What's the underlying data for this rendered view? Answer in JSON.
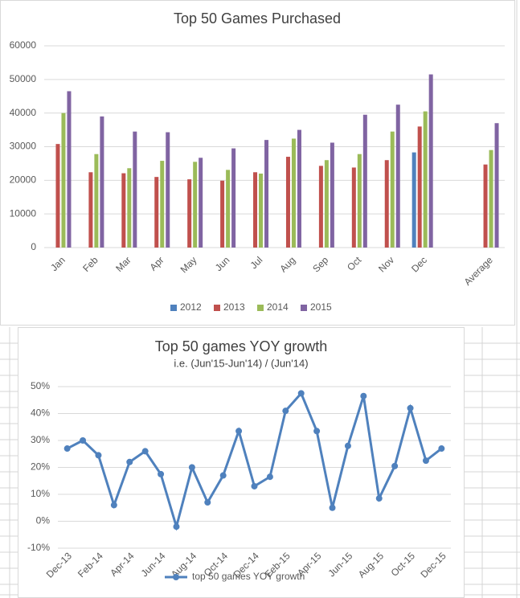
{
  "chart_data": [
    {
      "type": "bar",
      "title": "Top 50 Games Purchased",
      "categories": [
        "Jan",
        "Feb",
        "Mar",
        "Apr",
        "May",
        "Jun",
        "Jul",
        "Aug",
        "Sep",
        "Oct",
        "Nov",
        "Dec",
        null,
        "Average"
      ],
      "series": [
        {
          "name": "2012",
          "color": "#4f81bd",
          "values": [
            null,
            null,
            null,
            null,
            null,
            null,
            null,
            null,
            null,
            null,
            null,
            28300,
            null,
            null
          ]
        },
        {
          "name": "2013",
          "color": "#c0504d",
          "values": [
            30800,
            22400,
            22100,
            21000,
            20300,
            19900,
            22400,
            27000,
            24300,
            23800,
            26000,
            36000,
            null,
            24700
          ]
        },
        {
          "name": "2014",
          "color": "#9bbb59",
          "values": [
            40000,
            27800,
            23600,
            25800,
            25500,
            23100,
            22000,
            32400,
            26000,
            27800,
            34500,
            40500,
            null,
            29000
          ]
        },
        {
          "name": "2015",
          "color": "#8064a2",
          "values": [
            46500,
            39000,
            34500,
            34300,
            26700,
            29500,
            32000,
            35000,
            31200,
            39500,
            42500,
            51500,
            null,
            37000
          ]
        }
      ],
      "ylim": [
        0,
        60000
      ],
      "yticks": [
        0,
        10000,
        20000,
        30000,
        40000,
        50000,
        60000
      ],
      "grid": true,
      "legend": "bottom"
    },
    {
      "type": "line",
      "title": "Top 50 games YOY growth",
      "subtitle": "i.e. (Jun'15-Jun'14) / (Jun'14)",
      "categories": [
        "Dec-13",
        null,
        "Feb-14",
        null,
        "Apr-14",
        null,
        "Jun-14",
        null,
        "Aug-14",
        null,
        "Oct-14",
        null,
        "Dec-14",
        null,
        "Feb-15",
        null,
        "Apr-15",
        null,
        "Jun-15",
        null,
        "Aug-15",
        null,
        "Oct-15",
        null,
        "Dec-15"
      ],
      "series": [
        {
          "name": "top 50 games YOY growth",
          "color": "#4f81bd",
          "values": [
            27,
            30,
            24.5,
            6,
            22,
            26,
            17.5,
            -2,
            20,
            7,
            17,
            33.5,
            13,
            16.5,
            41,
            47.5,
            33.5,
            5,
            28,
            46.5,
            8.5,
            20.5,
            42,
            22.5,
            27
          ]
        }
      ],
      "ylim": [
        -10,
        50
      ],
      "yticks": [
        {
          "value": -10,
          "label": "-10%"
        },
        {
          "value": 0,
          "label": "0%"
        },
        {
          "value": 10,
          "label": "10%"
        },
        {
          "value": 20,
          "label": "20%"
        },
        {
          "value": 30,
          "label": "30%"
        },
        {
          "value": 40,
          "label": "40%"
        },
        {
          "value": 50,
          "label": "50%"
        }
      ],
      "grid": true,
      "legend": "bottom"
    }
  ]
}
